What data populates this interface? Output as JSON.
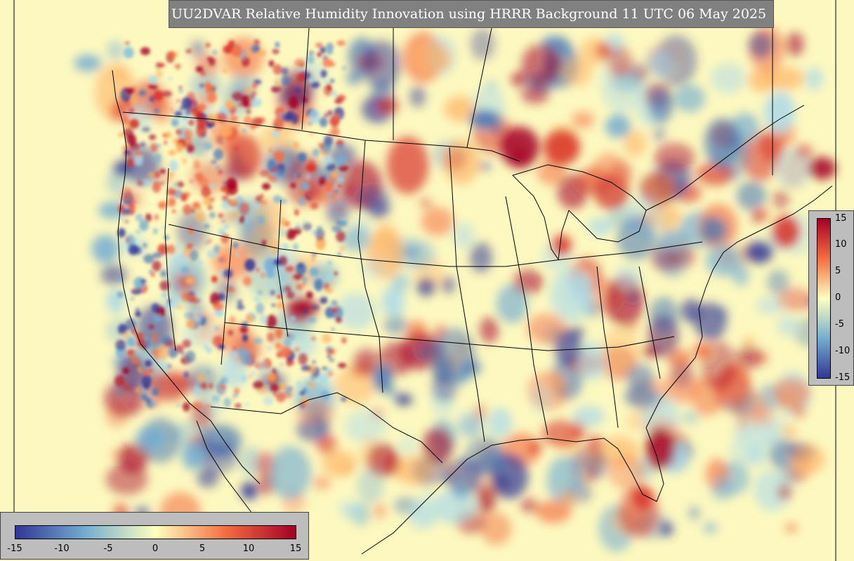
{
  "title": "UU2DVAR Relative Humidity Innovation using HRRR Background 11 UTC 06 May 2025",
  "colors": {
    "background_field": "#fdf8c0",
    "neg_max": "#313695",
    "neg_mid": "#74add1",
    "zero": "#ffffbf",
    "pos_mid": "#f46d43",
    "pos_max": "#a50026",
    "boundaries": "#000000",
    "panel": "#bdbdbd",
    "title_bg": "#808080"
  },
  "colorbar_vertical": {
    "ticks": [
      "15",
      "10",
      "5",
      "0",
      "-5",
      "-10",
      "-15"
    ]
  },
  "colorbar_horizontal": {
    "ticks": [
      "-15",
      "-10",
      "-5",
      "0",
      "5",
      "10",
      "15"
    ]
  },
  "scale": {
    "min": -15,
    "max": 15
  }
}
